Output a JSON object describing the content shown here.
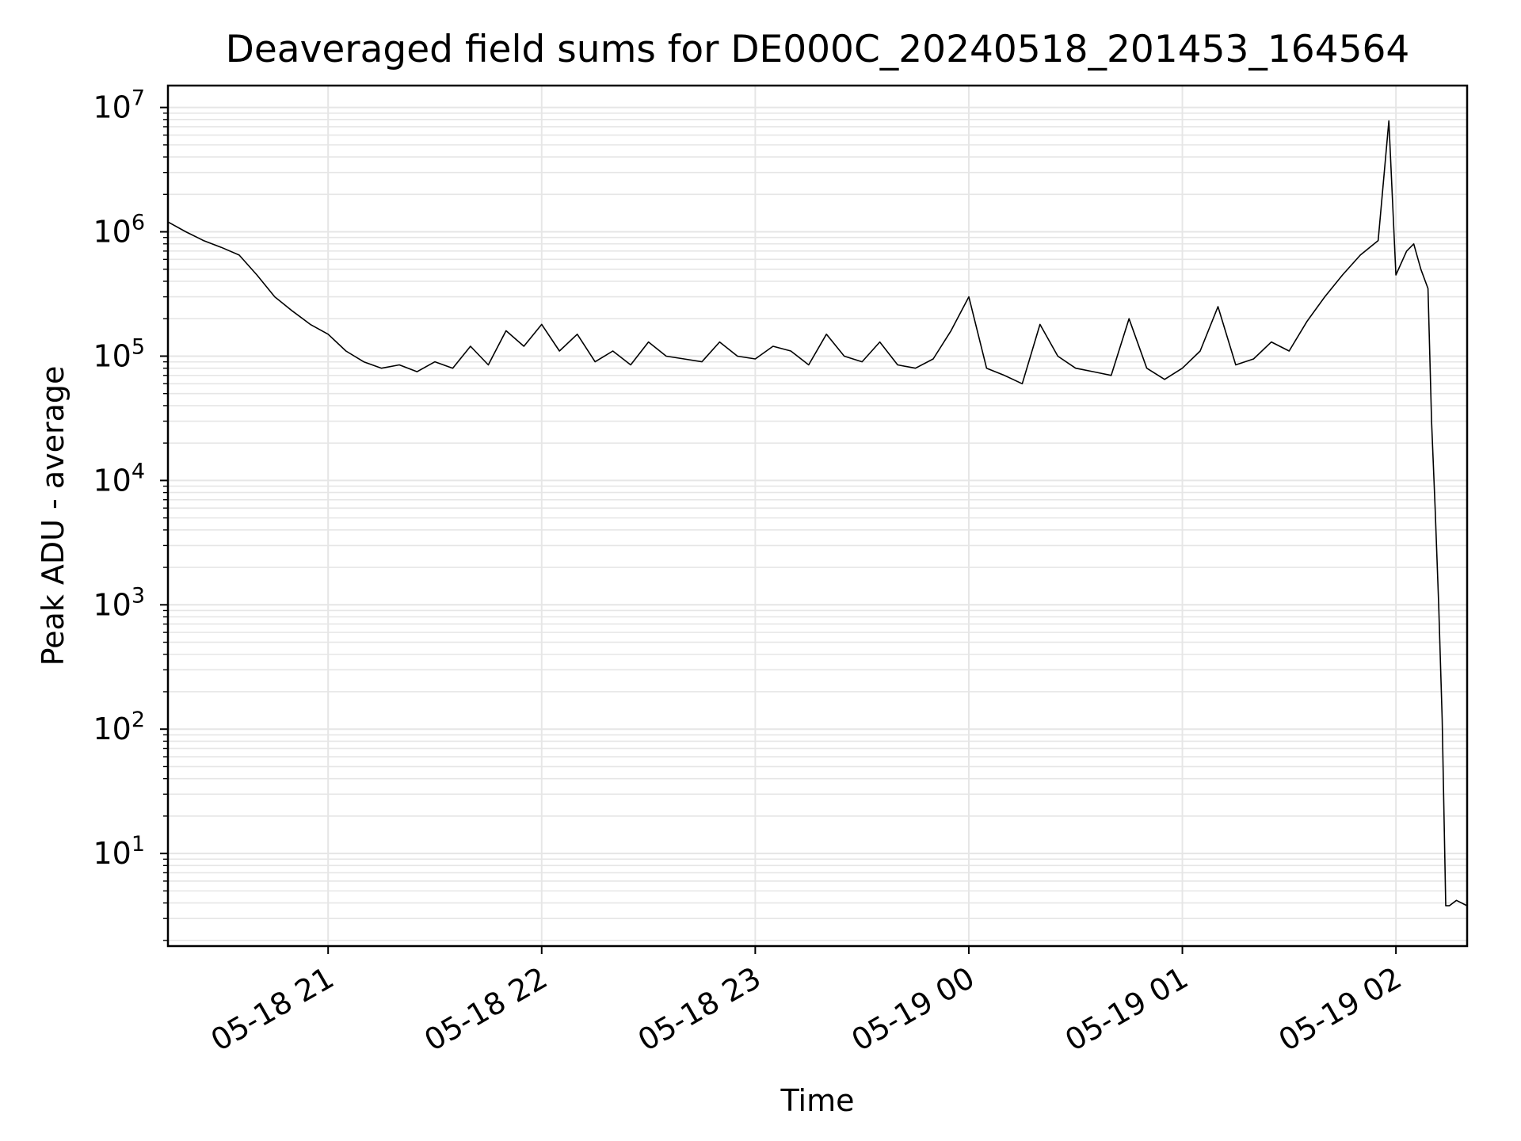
{
  "chart_data": {
    "type": "line",
    "title": "Deaveraged field sums for DE000C_20240518_201453_164564",
    "xlabel": "Time",
    "ylabel": "Peak ADU - average",
    "y_scale": "log",
    "ylim": [
      1.8,
      15000000
    ],
    "xlim": [
      "2024-05-18 20:15",
      "2024-05-19 02:20"
    ],
    "grid": true,
    "line_color": "#000000",
    "grid_color": "#e6e6e6",
    "x_ticks": [
      {
        "value": "2024-05-18 21:00",
        "label": "05-18 21"
      },
      {
        "value": "2024-05-18 22:00",
        "label": "05-18 22"
      },
      {
        "value": "2024-05-18 23:00",
        "label": "05-18 23"
      },
      {
        "value": "2024-05-19 00:00",
        "label": "05-19 00"
      },
      {
        "value": "2024-05-19 01:00",
        "label": "05-19 01"
      },
      {
        "value": "2024-05-19 02:00",
        "label": "05-19 02"
      }
    ],
    "y_ticks": [
      {
        "value": 10,
        "base": "10",
        "exp": "1"
      },
      {
        "value": 100,
        "base": "10",
        "exp": "2"
      },
      {
        "value": 1000,
        "base": "10",
        "exp": "3"
      },
      {
        "value": 10000,
        "base": "10",
        "exp": "4"
      },
      {
        "value": 100000,
        "base": "10",
        "exp": "5"
      },
      {
        "value": 1000000,
        "base": "10",
        "exp": "6"
      },
      {
        "value": 10000000,
        "base": "10",
        "exp": "7"
      }
    ],
    "series": [
      {
        "x": [
          "2024-05-18 20:15",
          "2024-05-18 20:20",
          "2024-05-18 20:25",
          "2024-05-18 20:30",
          "2024-05-18 20:35",
          "2024-05-18 20:40",
          "2024-05-18 20:45",
          "2024-05-18 20:50",
          "2024-05-18 20:55",
          "2024-05-18 21:00",
          "2024-05-18 21:05",
          "2024-05-18 21:10",
          "2024-05-18 21:15",
          "2024-05-18 21:20",
          "2024-05-18 21:25",
          "2024-05-18 21:30",
          "2024-05-18 21:35",
          "2024-05-18 21:40",
          "2024-05-18 21:45",
          "2024-05-18 21:50",
          "2024-05-18 21:55",
          "2024-05-18 22:00",
          "2024-05-18 22:05",
          "2024-05-18 22:10",
          "2024-05-18 22:15",
          "2024-05-18 22:20",
          "2024-05-18 22:25",
          "2024-05-18 22:30",
          "2024-05-18 22:35",
          "2024-05-18 22:40",
          "2024-05-18 22:45",
          "2024-05-18 22:50",
          "2024-05-18 22:55",
          "2024-05-18 23:00",
          "2024-05-18 23:05",
          "2024-05-18 23:10",
          "2024-05-18 23:15",
          "2024-05-18 23:20",
          "2024-05-18 23:25",
          "2024-05-18 23:30",
          "2024-05-18 23:35",
          "2024-05-18 23:40",
          "2024-05-18 23:45",
          "2024-05-18 23:50",
          "2024-05-18 23:55",
          "2024-05-19 00:00",
          "2024-05-19 00:05",
          "2024-05-19 00:10",
          "2024-05-19 00:15",
          "2024-05-19 00:20",
          "2024-05-19 00:25",
          "2024-05-19 00:30",
          "2024-05-19 00:35",
          "2024-05-19 00:40",
          "2024-05-19 00:45",
          "2024-05-19 00:50",
          "2024-05-19 00:55",
          "2024-05-19 01:00",
          "2024-05-19 01:05",
          "2024-05-19 01:10",
          "2024-05-19 01:15",
          "2024-05-19 01:20",
          "2024-05-19 01:25",
          "2024-05-19 01:30",
          "2024-05-19 01:35",
          "2024-05-19 01:40",
          "2024-05-19 01:45",
          "2024-05-19 01:50",
          "2024-05-19 01:55",
          "2024-05-19 01:58",
          "2024-05-19 02:00",
          "2024-05-19 02:03",
          "2024-05-19 02:05",
          "2024-05-19 02:07",
          "2024-05-19 02:09",
          "2024-05-19 02:10",
          "2024-05-19 02:11",
          "2024-05-19 02:12",
          "2024-05-19 02:13",
          "2024-05-19 02:14",
          "2024-05-19 02:15",
          "2024-05-19 02:17",
          "2024-05-19 02:20"
        ],
        "y": [
          1200000,
          1000000,
          850000,
          750000,
          650000,
          450000,
          300000,
          230000,
          180000,
          150000,
          110000,
          90000,
          80000,
          85000,
          75000,
          90000,
          80000,
          120000,
          85000,
          160000,
          120000,
          180000,
          110000,
          150000,
          90000,
          110000,
          85000,
          130000,
          100000,
          95000,
          90000,
          130000,
          100000,
          95000,
          120000,
          110000,
          85000,
          150000,
          100000,
          90000,
          130000,
          85000,
          80000,
          95000,
          160000,
          300000,
          80000,
          70000,
          60000,
          180000,
          100000,
          80000,
          75000,
          70000,
          200000,
          80000,
          65000,
          80000,
          110000,
          250000,
          85000,
          95000,
          130000,
          110000,
          190000,
          300000,
          450000,
          650000,
          850000,
          7800000,
          450000,
          700000,
          800000,
          500000,
          350000,
          30000,
          6000,
          1000,
          120,
          3.8,
          3.8,
          4.2,
          3.8
        ]
      }
    ]
  }
}
